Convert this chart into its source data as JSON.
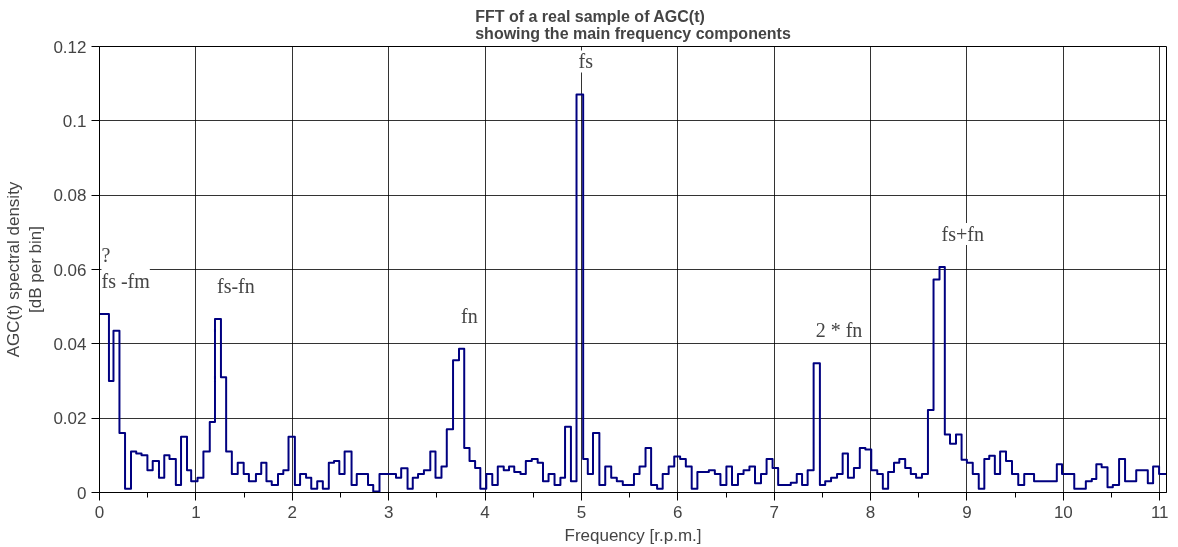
{
  "chart_data": {
    "type": "step",
    "title": "FFT of a real sample of AGC(t)\nshowing the main frequency components",
    "xlabel": "Frequency [r.p.m.]",
    "ylabel": "AGC(t) spectral density\n[dB per bin]",
    "series": [
      {
        "color": "#000080",
        "x": [
          0,
          0.098,
          0.145,
          0.207,
          0.265,
          0.327,
          0.381,
          0.436,
          0.497,
          0.552,
          0.617,
          0.672,
          0.726,
          0.792,
          0.846,
          0.908,
          0.951,
          1.017,
          1.078,
          1.144,
          1.198,
          1.26,
          1.314,
          1.373,
          1.434,
          1.496,
          1.55,
          1.623,
          1.678,
          1.732,
          1.787,
          1.852,
          1.907,
          1.961,
          2.027,
          2.081,
          2.143,
          2.197,
          2.259,
          2.317,
          2.379,
          2.433,
          2.488,
          2.543,
          2.615,
          2.669,
          2.724,
          2.786,
          2.84,
          2.905,
          2.96,
          3.014,
          3.076,
          3.13,
          3.196,
          3.25,
          3.305,
          3.366,
          3.432,
          3.486,
          3.548,
          3.603,
          3.668,
          3.73,
          3.784,
          3.839,
          3.897,
          3.951,
          4.013,
          4.075,
          4.132,
          4.194,
          4.249,
          4.303,
          4.368,
          4.423,
          4.485,
          4.546,
          4.601,
          4.659,
          4.721,
          4.782,
          4.83,
          4.891,
          4.949,
          5.018,
          5.066,
          5.12,
          5.186,
          5.247,
          5.309,
          5.367,
          5.429,
          5.487,
          5.545,
          5.603,
          5.665,
          5.723,
          5.785,
          5.843,
          5.905,
          5.963,
          6.024,
          6.083,
          6.144,
          6.203,
          6.264,
          6.322,
          6.384,
          6.442,
          6.504,
          6.562,
          6.624,
          6.682,
          6.743,
          6.801,
          6.863,
          6.921,
          6.983,
          7.041,
          7.118,
          7.172,
          7.234,
          7.289,
          7.347,
          7.409,
          7.474,
          7.529,
          7.59,
          7.652,
          7.71,
          7.765,
          7.827,
          7.888,
          7.946,
          8.007,
          8.069,
          8.127,
          8.182,
          8.243,
          8.298,
          8.359,
          8.417,
          8.472,
          8.533,
          8.595,
          8.653,
          8.715,
          8.77,
          8.824,
          8.886,
          8.944,
          8.999,
          9.06,
          9.122,
          9.18,
          9.231,
          9.289,
          9.344,
          9.405,
          9.467,
          9.532,
          9.594,
          9.696,
          9.757,
          9.823,
          9.932,
          9.986,
          10.052,
          10.113,
          10.233,
          10.295,
          10.342,
          10.397,
          10.458,
          10.513,
          10.578,
          10.64,
          10.756,
          10.811,
          10.876,
          10.931,
          10.993,
          11.065
        ],
        "values": [
          0.048,
          0.03,
          0.0435,
          0.016,
          0.001,
          0.011,
          0.0105,
          0.01,
          0.006,
          0.0085,
          0.004,
          0.01,
          0.009,
          0.002,
          0.015,
          0.006,
          0.003,
          0.004,
          0.011,
          0.019,
          0.0467,
          0.031,
          0.011,
          0.005,
          0.008,
          0.005,
          0.003,
          0.005,
          0.008,
          0.003,
          0.002,
          0.005,
          0.006,
          0.015,
          0.002,
          0.005,
          0.004,
          0.001,
          0.003,
          0.001,
          0.008,
          0.0085,
          0.005,
          0.011,
          0.002,
          0.005,
          0.005,
          0.002,
          0.0003,
          0.005,
          0.005,
          0.005,
          0.004,
          0.0065,
          0.001,
          0.004,
          0.005,
          0.006,
          0.011,
          0.004,
          0.007,
          0.017,
          0.0356,
          0.0387,
          0.012,
          0.0085,
          0.0066,
          0.001,
          0.005,
          0.002,
          0.007,
          0.006,
          0.007,
          0.0055,
          0.005,
          0.0085,
          0.009,
          0.008,
          0.003,
          0.005,
          0.002,
          0.004,
          0.0177,
          0.003,
          0.1071,
          0.009,
          0.005,
          0.016,
          0.002,
          0.007,
          0.004,
          0.003,
          0.002,
          0.002,
          0.005,
          0.007,
          0.012,
          0.002,
          0.001,
          0.005,
          0.007,
          0.0097,
          0.009,
          0.007,
          0.001,
          0.0055,
          0.0055,
          0.006,
          0.005,
          0.002,
          0.007,
          0.002,
          0.005,
          0.006,
          0.007,
          0.0025,
          0.005,
          0.009,
          0.0066,
          0.002,
          0.002,
          0.0026,
          0.005,
          0.002,
          0.006,
          0.0348,
          0.002,
          0.003,
          0.004,
          0.005,
          0.0105,
          0.004,
          0.0066,
          0.012,
          0.0116,
          0.006,
          0.005,
          0.001,
          0.0055,
          0.008,
          0.009,
          0.0066,
          0.005,
          0.004,
          0.005,
          0.0222,
          0.0573,
          0.0607,
          0.0156,
          0.0131,
          0.0156,
          0.0088,
          0.008,
          0.005,
          0.001,
          0.009,
          0.0099,
          0.005,
          0.011,
          0.0085,
          0.005,
          0.002,
          0.005,
          0.003,
          0.003,
          0.003,
          0.0076,
          0.005,
          0.005,
          0.001,
          0.003,
          0.0036,
          0.0076,
          0.0068,
          0.0014,
          0.002,
          0.009,
          0.003,
          0.006,
          0.006,
          0.0025,
          0.007,
          0.005,
          0.005
        ]
      }
    ],
    "xlim": [
      0,
      11.07
    ],
    "ylim": [
      0,
      0.12
    ],
    "xticks": [
      0,
      {
        "value": 0.5,
        "label": null
      },
      1,
      {
        "value": 1.5,
        "label": null
      },
      2,
      {
        "value": 2.5,
        "label": null
      },
      3,
      {
        "value": 3.5,
        "label": null
      },
      4,
      {
        "value": 4.5,
        "label": null
      },
      5,
      {
        "value": 5.5,
        "label": null
      },
      6,
      {
        "value": 6.5,
        "label": null
      },
      7,
      {
        "value": 7.5,
        "label": null
      },
      8,
      {
        "value": 8.5,
        "label": null
      },
      9,
      {
        "value": 9.5,
        "label": null
      },
      10,
      {
        "value": 10.5,
        "label": null
      },
      11
    ],
    "yticks": [
      0,
      0.02,
      0.04,
      0.06,
      0.08,
      0.1,
      0.12
    ],
    "grid": true,
    "line_style": "solid",
    "marker": "none",
    "annotations": [
      {
        "text": "?\nfs -fm",
        "x": 0,
        "y": 0.048
      },
      {
        "text": "fs-fn",
        "x": 1.198,
        "y": 0.0467
      },
      {
        "text": "fn",
        "x": 3.73,
        "y": 0.0387
      },
      {
        "text": "fs",
        "x": 4.949,
        "y": 0.1071
      },
      {
        "text": "2 * fn",
        "x": 7.409,
        "y": 0.0348
      },
      {
        "text": "fs+fn",
        "x": 8.715,
        "y": 0.0607
      }
    ]
  }
}
